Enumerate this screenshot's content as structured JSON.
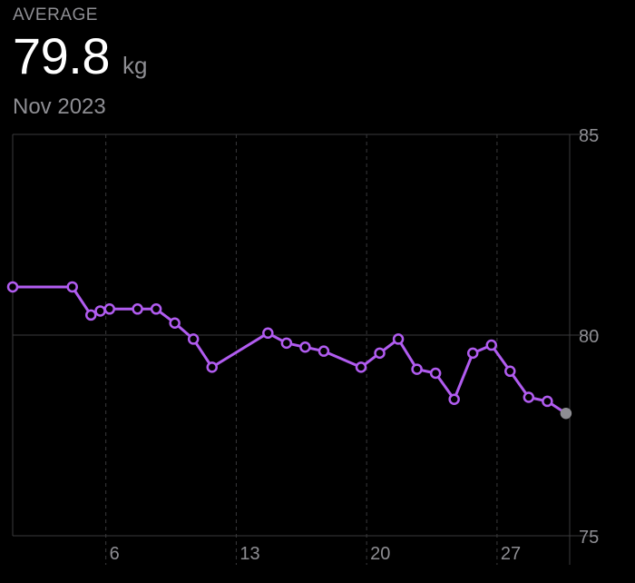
{
  "header": {
    "label": "AVERAGE",
    "value": "79.8",
    "unit": "kg",
    "period": "Nov 2023"
  },
  "colors": {
    "background": "#000000",
    "line": "#b15cf0",
    "last_point": "#8e8e93",
    "grid": "#3a3a3c",
    "text_secondary": "#8e8e93"
  },
  "chart_data": {
    "type": "line",
    "title": "",
    "xlabel": "",
    "ylabel": "",
    "xlim": [
      1,
      30.9
    ],
    "ylim": [
      75,
      85
    ],
    "y_ticks": [
      75,
      80,
      85
    ],
    "x_ticks": [
      6,
      13,
      20,
      27
    ],
    "x_tick_labels": [
      "6",
      "13",
      "20",
      "27"
    ],
    "grid": true,
    "series": [
      {
        "x": [
          1,
          4.2,
          5.2,
          5.7,
          6.2,
          7.7,
          8.7,
          9.7,
          10.7,
          11.7,
          14.7,
          15.7,
          16.7,
          17.7,
          19.7,
          20.7,
          21.7,
          22.7,
          23.7,
          24.7,
          25.7,
          26.7,
          27.7,
          28.7,
          29.7,
          30.7
        ],
        "y": [
          81.2,
          81.2,
          80.5,
          80.6,
          80.65,
          80.65,
          80.65,
          80.3,
          79.9,
          79.2,
          80.05,
          79.8,
          79.7,
          79.6,
          79.2,
          79.55,
          79.9,
          79.15,
          79.05,
          78.4,
          79.55,
          79.75,
          79.1,
          78.45,
          78.35,
          78.05
        ]
      }
    ],
    "last_point_highlighted": true
  }
}
